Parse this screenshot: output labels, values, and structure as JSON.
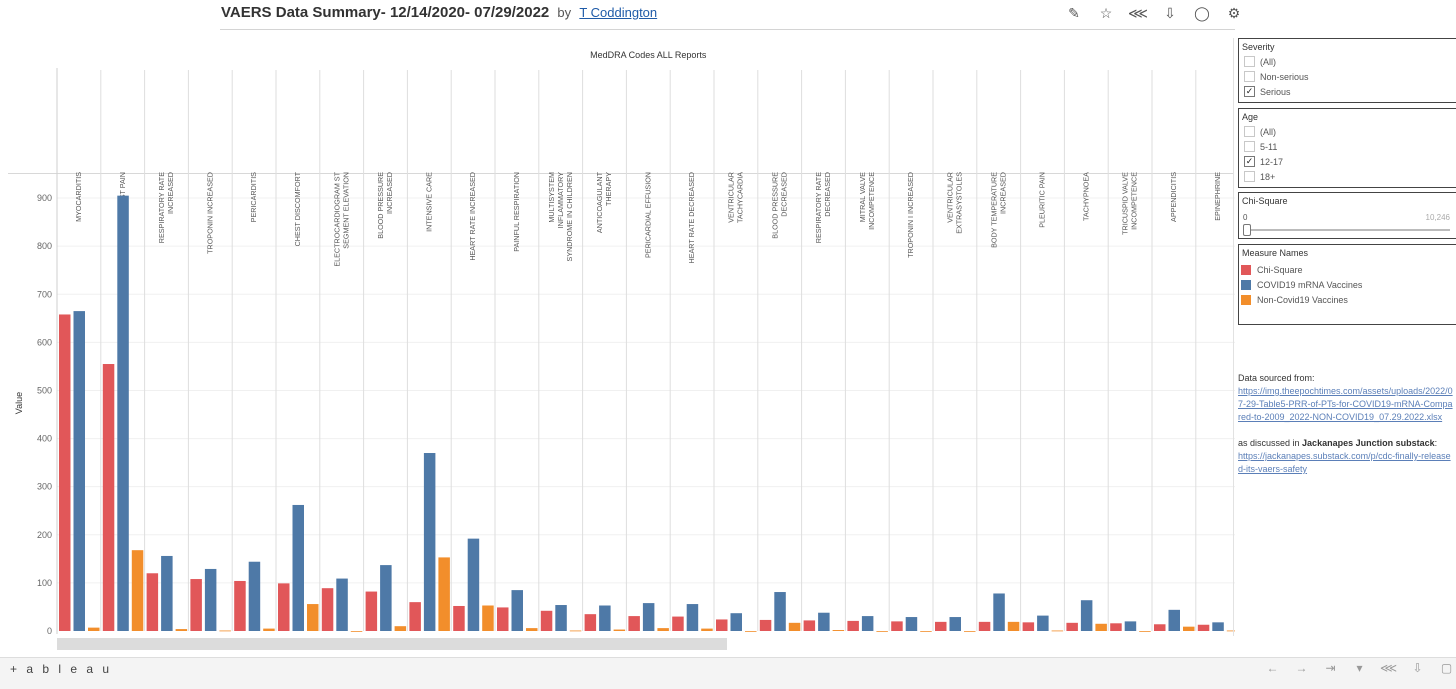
{
  "header": {
    "title": "VAERS Data Summary- 12/14/2020- 07/29/2022",
    "by": "by",
    "author": "T Coddington"
  },
  "toolbar_icons": [
    "edit-icon",
    "star-icon",
    "share-icon",
    "download-icon",
    "watch-icon",
    "settings-icon"
  ],
  "filters": {
    "severity": {
      "title": "Severity",
      "options": [
        {
          "label": "(All)",
          "checked": false
        },
        {
          "label": "Non-serious",
          "checked": false
        },
        {
          "label": "Serious",
          "checked": true
        }
      ]
    },
    "age": {
      "title": "Age",
      "options": [
        {
          "label": "(All)",
          "checked": false
        },
        {
          "label": "5-11",
          "checked": false
        },
        {
          "label": "12-17",
          "checked": true
        },
        {
          "label": "18+",
          "checked": false
        }
      ]
    },
    "chi_square": {
      "title": "Chi-Square",
      "min": "0",
      "max": "10,246"
    }
  },
  "legend": {
    "title": "Measure Names",
    "items": [
      {
        "label": "Chi-Square",
        "color": "#e15759"
      },
      {
        "label": "COVID19 mRNA Vaccines",
        "color": "#4e79a7"
      },
      {
        "label": "Non-Covid19 Vaccines",
        "color": "#f28e2b"
      }
    ]
  },
  "source": {
    "line1": "Data sourced from:",
    "link1": "https://img.theepochtimes.com/assets/uploads/2022/07-29-Table5-PRR-of-PTs-for-COVID19-mRNA-Compared-to-2009_2022-NON-COVID19_07.29.2022.xlsx",
    "line2_a": "as discussed in ",
    "line2_b": "Jackanapes Junction substack",
    "line2_c": ":",
    "link2": "https://jackanapes.substack.com/p/cdc-finally-released-its-vaers-safety"
  },
  "footer": {
    "logo": "+ a b l e a u",
    "icons": [
      "undo-icon",
      "redo-icon",
      "revert-icon",
      "pause-icon",
      "share-icon",
      "download-icon",
      "fullscreen-icon"
    ]
  },
  "chart_data": {
    "type": "bar",
    "title": "MedDRA Codes ALL Reports",
    "ylabel": "Value",
    "ylim": [
      0,
      950
    ],
    "yticks": [
      0,
      100,
      200,
      300,
      400,
      500,
      600,
      700,
      800,
      900
    ],
    "categories": [
      "MYOCARDITIS",
      "CHEST PAIN",
      "RESPIRATORY RATE INCREASED",
      "TROPONIN INCREASED",
      "PERICARDITIS",
      "CHEST DISCOMFORT",
      "ELECTROCARDIOGRAM ST SEGMENT ELEVATION",
      "BLOOD PRESSURE INCREASED",
      "INTENSIVE CARE",
      "HEART RATE INCREASED",
      "PAINFUL RESPIRATION",
      "MULTISYSTEM INFLAMMATORY SYNDROME IN CHILDREN",
      "ANTICOAGULANT THERAPY",
      "PERICARDIAL EFFUSION",
      "HEART RATE DECREASED",
      "VENTRICULAR TACHYCARDIA",
      "BLOOD PRESSURE DECREASED",
      "RESPIRATORY RATE DECREASED",
      "MITRAL VALVE INCOMPETENCE",
      "TROPONIN I INCREASED",
      "VENTRICULAR EXTRASYSTOLES",
      "BODY TEMPERATURE INCREASED",
      "PLEURITIC PAIN",
      "TACHYPNOEA",
      "TRICUSPID VALVE INCOMPETENCE",
      "APPENDICITIS",
      "EPINEPHRINE"
    ],
    "series": [
      {
        "name": "Chi-Square",
        "color": "#e15759",
        "values": [
          658,
          555,
          120,
          108,
          104,
          99,
          89,
          82,
          60,
          52,
          49,
          42,
          35,
          31,
          30,
          24,
          23,
          22,
          21,
          20,
          19,
          19,
          18,
          17,
          16,
          14,
          13
        ]
      },
      {
        "name": "COVID19 mRNA Vaccines",
        "color": "#4e79a7",
        "values": [
          665,
          905,
          156,
          129,
          144,
          262,
          109,
          137,
          370,
          192,
          85,
          54,
          53,
          58,
          56,
          37,
          81,
          38,
          31,
          29,
          29,
          78,
          32,
          64,
          20,
          44,
          18
        ]
      },
      {
        "name": "Non-Covid19 Vaccines",
        "color": "#f28e2b",
        "values": [
          7,
          168,
          4,
          1,
          5,
          56,
          0,
          10,
          153,
          53,
          6,
          1,
          3,
          6,
          5,
          0,
          17,
          2,
          0,
          0,
          0,
          19,
          1,
          15,
          0,
          9,
          1
        ]
      }
    ]
  }
}
